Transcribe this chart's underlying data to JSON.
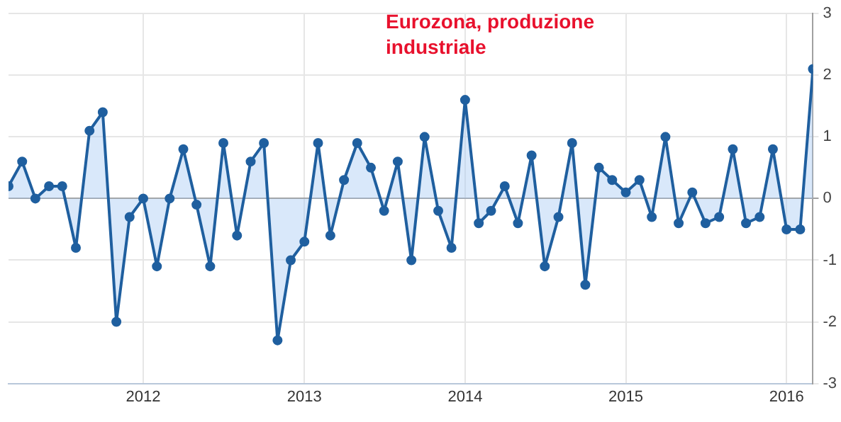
{
  "chart_data": {
    "type": "area",
    "title": "Eurozona, produzione industriale",
    "x": [
      "2011-03",
      "2011-04",
      "2011-05",
      "2011-06",
      "2011-07",
      "2011-08",
      "2011-09",
      "2011-10",
      "2011-11",
      "2011-12",
      "2012-01",
      "2012-02",
      "2012-03",
      "2012-04",
      "2012-05",
      "2012-06",
      "2012-07",
      "2012-08",
      "2012-09",
      "2012-10",
      "2012-11",
      "2012-12",
      "2013-01",
      "2013-02",
      "2013-03",
      "2013-04",
      "2013-05",
      "2013-06",
      "2013-07",
      "2013-08",
      "2013-09",
      "2013-10",
      "2013-11",
      "2013-12",
      "2014-01",
      "2014-02",
      "2014-03",
      "2014-04",
      "2014-05",
      "2014-06",
      "2014-07",
      "2014-08",
      "2014-09",
      "2014-10",
      "2014-11",
      "2014-12",
      "2015-01",
      "2015-02",
      "2015-03",
      "2015-04",
      "2015-05",
      "2015-06",
      "2015-07",
      "2015-08",
      "2015-09",
      "2015-10",
      "2015-11",
      "2015-12",
      "2016-01",
      "2016-02",
      "2016-03"
    ],
    "series": [
      {
        "color": "#1f5f9f",
        "values": [
          0.2,
          0.6,
          0.0,
          0.2,
          0.2,
          -0.8,
          1.1,
          1.4,
          -2.0,
          -0.3,
          0.0,
          -1.1,
          0.0,
          0.8,
          -0.1,
          -1.1,
          0.9,
          -0.6,
          0.6,
          0.9,
          -2.3,
          -1.0,
          -0.7,
          0.9,
          -0.6,
          0.3,
          0.9,
          0.5,
          -0.2,
          0.6,
          -1.0,
          1.0,
          -0.2,
          -0.8,
          1.6,
          -0.4,
          -0.2,
          0.2,
          -0.4,
          0.7,
          -1.1,
          -0.3,
          0.9,
          -1.4,
          0.5,
          0.3,
          0.1,
          0.3,
          -0.3,
          1.0,
          -0.4,
          0.1,
          -0.4,
          -0.3,
          0.8,
          -0.4,
          -0.3,
          0.8,
          -0.5,
          -0.5,
          2.1
        ]
      }
    ],
    "xlim": [
      "2011-03",
      "2016-03"
    ],
    "xticks": [
      "2012",
      "2013",
      "2014",
      "2015",
      "2016"
    ],
    "ylim": [
      -3,
      3
    ],
    "yticks": [
      -3,
      -2,
      -1,
      0,
      1,
      2,
      3
    ],
    "grid": true,
    "legend": false,
    "marker": "circle",
    "line_style": "solid"
  }
}
